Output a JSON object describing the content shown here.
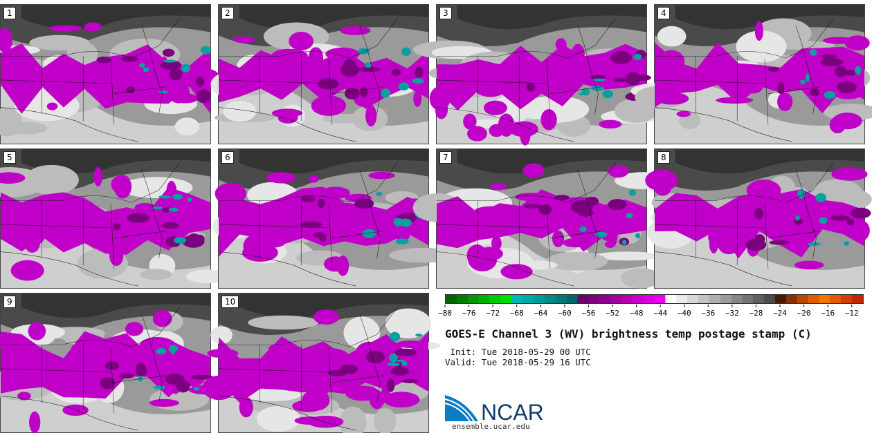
{
  "title": "GOES-E Channel 3 (WV) brightness temp postage stamp (C)",
  "init": " Init: Tue 2018-05-29 00 UTC",
  "valid": "Valid: Tue 2018-05-29 16 UTC",
  "logo_text": "NCAR",
  "url": "ensemble.ucar.edu",
  "members": [
    "1",
    "2",
    "3",
    "4",
    "5",
    "6",
    "7",
    "8",
    "9",
    "10"
  ],
  "colorbar": {
    "tick_labels": [
      "−80",
      "−76",
      "−72",
      "−68",
      "−64",
      "−60",
      "−56",
      "−52",
      "−48",
      "−44",
      "−40",
      "−36",
      "−32",
      "−28",
      "−24",
      "−20",
      "−16",
      "−12"
    ],
    "min": -80,
    "max": -10,
    "colors": [
      "#006400",
      "#007d00",
      "#009600",
      "#00b000",
      "#00c900",
      "#00e000",
      "#00b8b8",
      "#00a8a8",
      "#009898",
      "#008888",
      "#007878",
      "#006868",
      "#6a006a",
      "#7d007d",
      "#900090",
      "#a300a3",
      "#b600b6",
      "#c900c9",
      "#dc00dc",
      "#ee00ee",
      "#ffffff",
      "#ebebeb",
      "#d7d7d7",
      "#c3c3c3",
      "#afafaf",
      "#9b9b9b",
      "#878787",
      "#737373",
      "#5f5f5f",
      "#4b4b4b",
      "#4a1a00",
      "#8a3000",
      "#b84a00",
      "#d86000",
      "#f07800",
      "#e05a00",
      "#d04000",
      "#c02800"
    ]
  }
}
